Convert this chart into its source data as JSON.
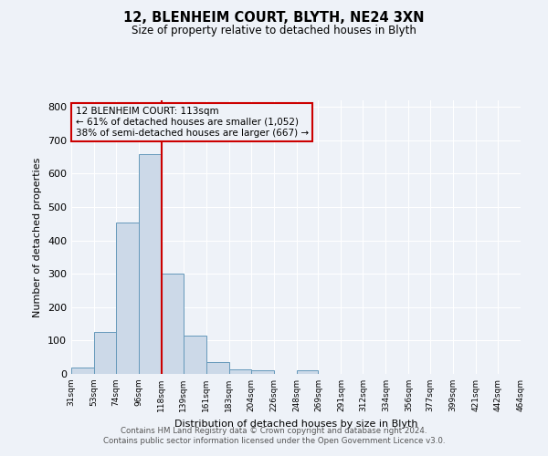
{
  "title": "12, BLENHEIM COURT, BLYTH, NE24 3XN",
  "subtitle": "Size of property relative to detached houses in Blyth",
  "xlabel": "Distribution of detached houses by size in Blyth",
  "ylabel": "Number of detached properties",
  "footnote1": "Contains HM Land Registry data © Crown copyright and database right 2024.",
  "footnote2": "Contains public sector information licensed under the Open Government Licence v3.0.",
  "bin_edges": [
    31,
    53,
    74,
    96,
    118,
    139,
    161,
    183,
    204,
    226,
    248,
    269,
    291,
    312,
    334,
    356,
    377,
    399,
    421,
    442,
    464
  ],
  "bin_counts": [
    20,
    125,
    455,
    660,
    300,
    115,
    35,
    15,
    10,
    0,
    10,
    0,
    0,
    0,
    0,
    0,
    0,
    0,
    0,
    0
  ],
  "bar_color": "#ccd9e8",
  "bar_edge_color": "#6699bb",
  "vline_x": 118,
  "vline_color": "#cc0000",
  "ylim": [
    0,
    820
  ],
  "yticks": [
    0,
    100,
    200,
    300,
    400,
    500,
    600,
    700,
    800
  ],
  "annotation_line1": "12 BLENHEIM COURT: 113sqm",
  "annotation_line2": "← 61% of detached houses are smaller (1,052)",
  "annotation_line3": "38% of semi-detached houses are larger (667) →",
  "annotation_box_color": "#cc0000",
  "background_color": "#eef2f8",
  "grid_color": "#ffffff"
}
